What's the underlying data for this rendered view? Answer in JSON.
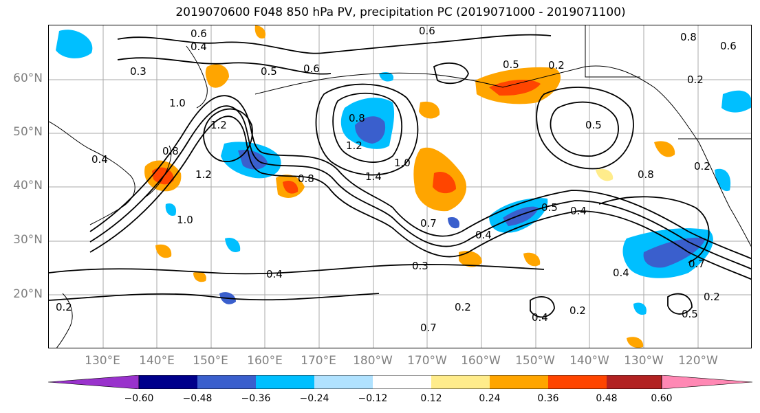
{
  "title": "2019070600 F048 850 hPa PV, precipitation PC (2019071000 - 2019071100)",
  "lat_labels": [
    "60°N",
    "50°N",
    "40°N",
    "30°N",
    "20°N"
  ],
  "lon_labels": [
    "130°E",
    "140°E",
    "150°E",
    "160°E",
    "170°E",
    "180°W",
    "170°W",
    "160°W",
    "150°W",
    "140°W",
    "130°W",
    "120°W"
  ],
  "contour_labels": [
    "0.6",
    "0.4",
    "0.3",
    "0.6",
    "0.8",
    "0.6",
    "0.2",
    "0.2",
    "0.5",
    "0.6",
    "0.8",
    "1.0",
    "1.2",
    "0.8",
    "1.2",
    "1.4",
    "1.0",
    "0.4",
    "0.8",
    "1.2",
    "1.0",
    "0.5",
    "0.4",
    "0.5",
    "0.4",
    "0.3",
    "0.4",
    "0.2",
    "0.7",
    "0.2",
    "0.5",
    "0.2",
    "0.4",
    "0.7",
    "0.2",
    "0.8",
    "0.4",
    "0.7",
    "0.5",
    "0.2"
  ],
  "colorbar": {
    "ticks": [
      "−0.60",
      "−0.48",
      "−0.36",
      "−0.24",
      "−0.12",
      "0.12",
      "0.24",
      "0.36",
      "0.48",
      "0.60"
    ],
    "colors": [
      "#9932CC",
      "#00008B",
      "#3A5FCD",
      "#00BFFF",
      "#B0E2FF",
      "#FFFFFF",
      "#FFEC8B",
      "#FFA500",
      "#FF4500",
      "#B22222",
      "#FF88B4"
    ]
  },
  "colors": {
    "neg_dark": "#3A5FCD",
    "neg_mid": "#00BFFF",
    "neg_light": "#B0E2FF",
    "pos_light": "#FFEC8B",
    "pos_mid": "#FFA500",
    "pos_dark": "#FF4500"
  }
}
